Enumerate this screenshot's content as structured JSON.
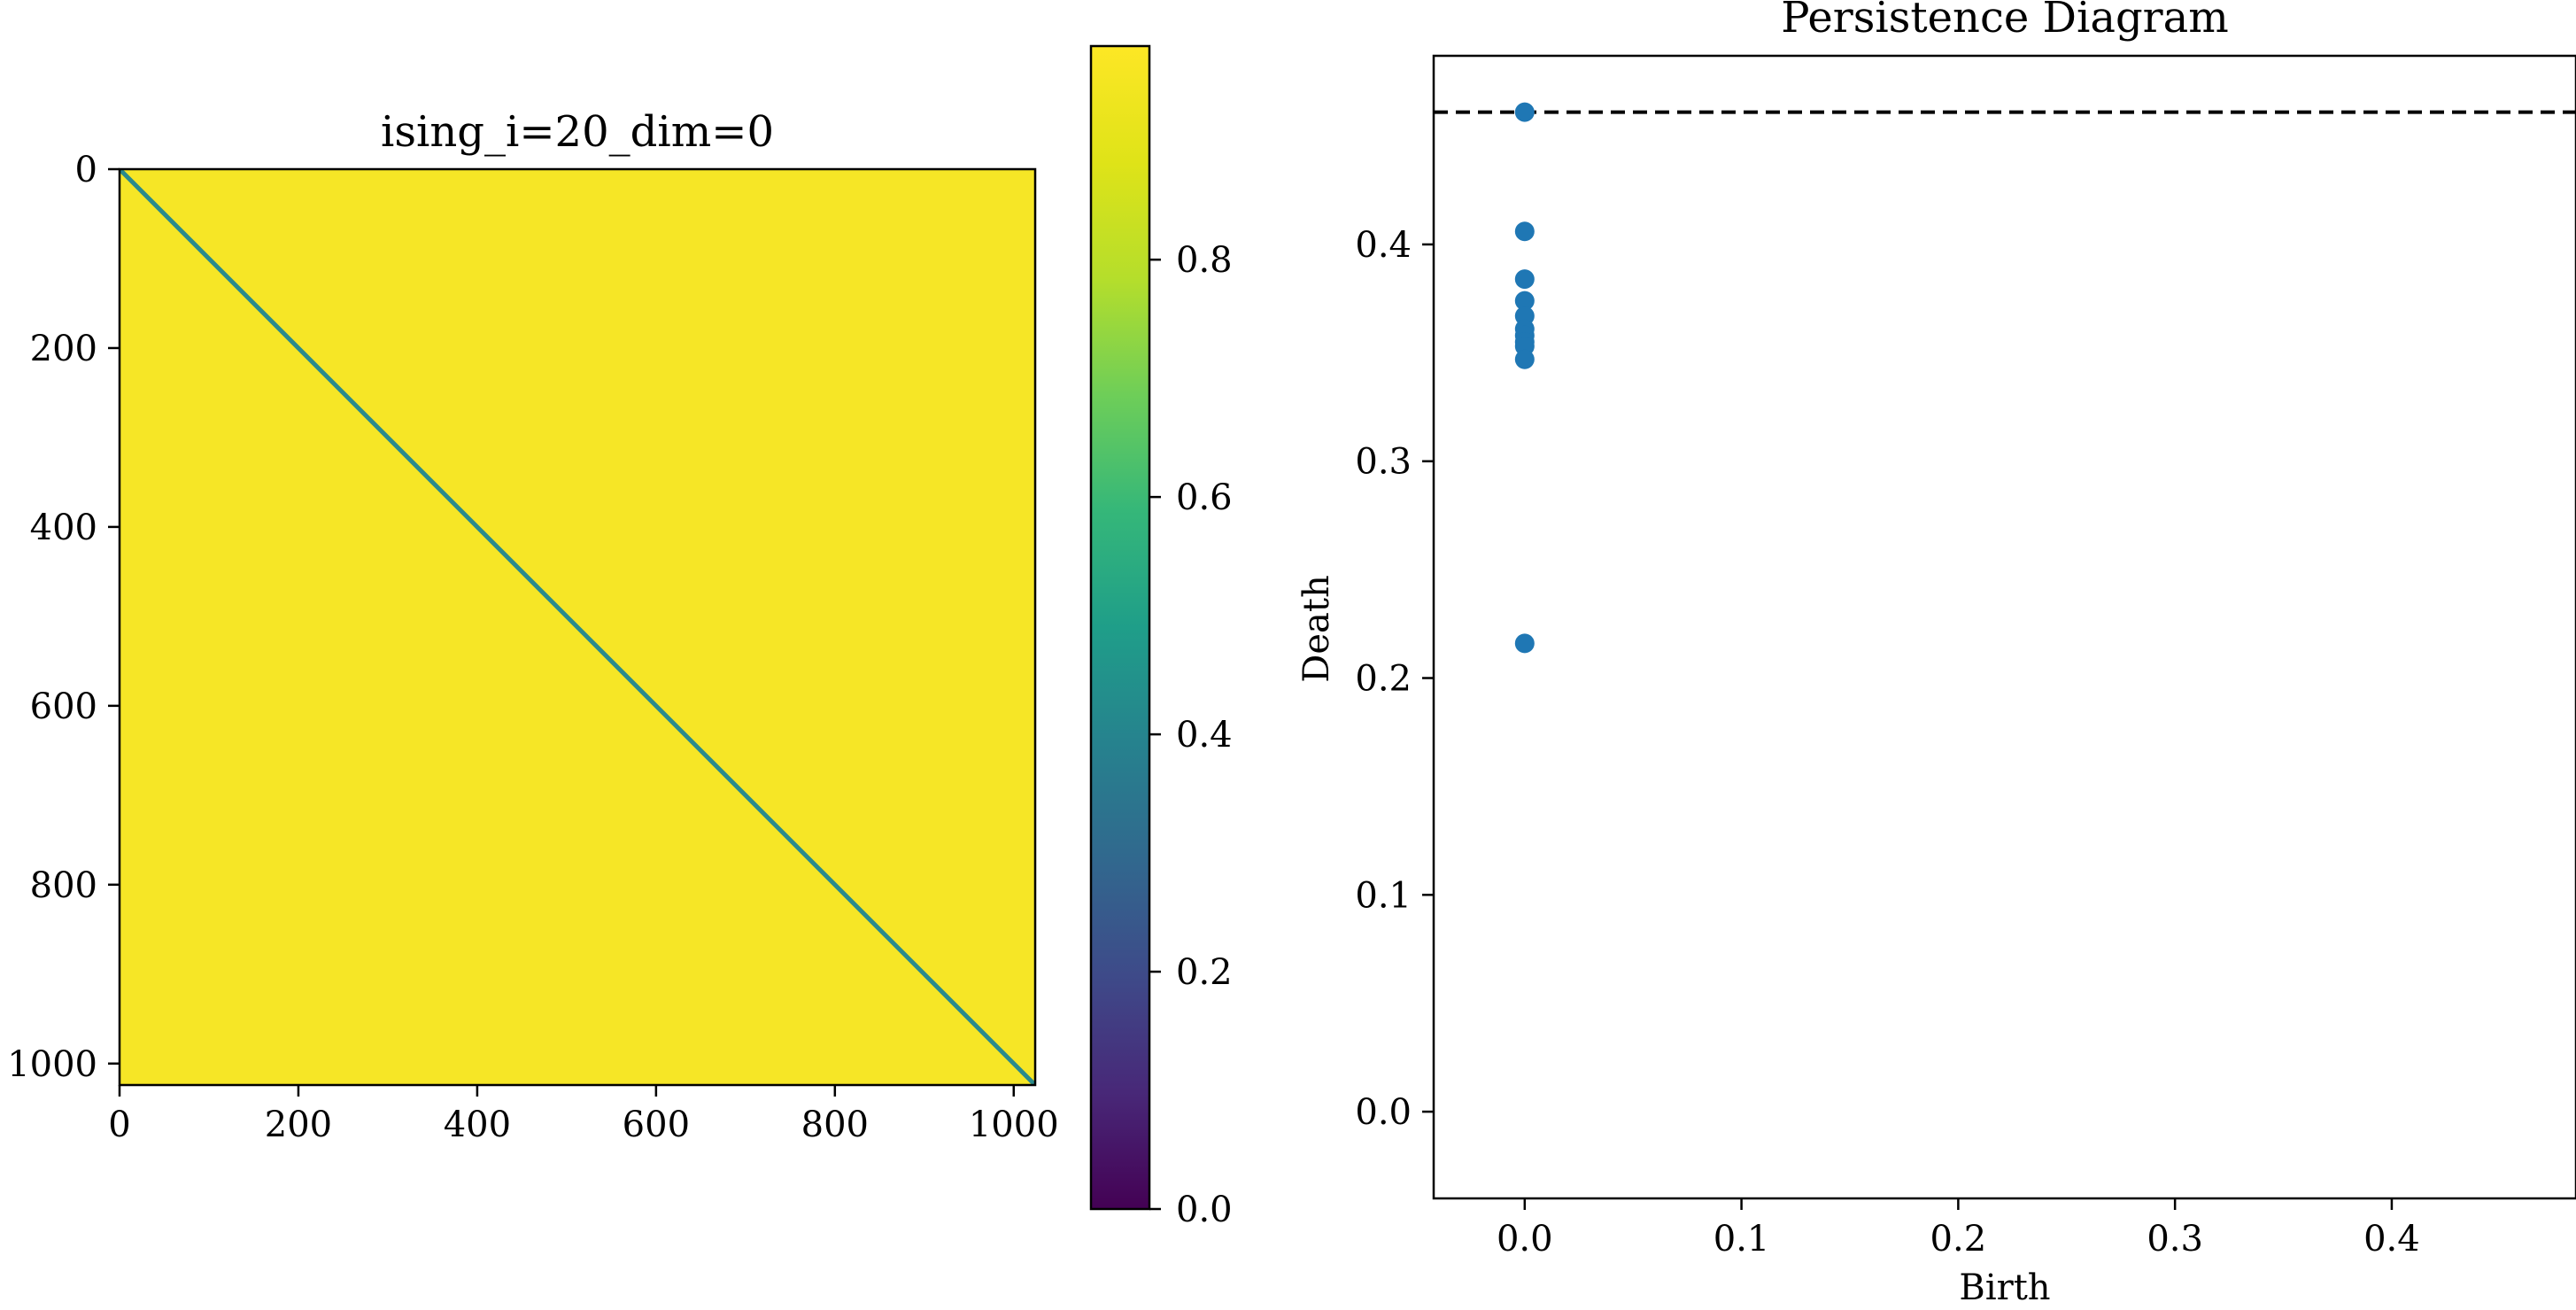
{
  "chart_data": [
    {
      "type": "heatmap",
      "title": "ising_i=20_dim=0",
      "xlabel": "",
      "ylabel": "",
      "xlim": [
        0,
        1024
      ],
      "ylim": [
        1024,
        0
      ],
      "x_ticks": [
        "0",
        "200",
        "400",
        "600",
        "800",
        "1000"
      ],
      "y_ticks": [
        "0",
        "200",
        "400",
        "600",
        "800",
        "1000"
      ],
      "matrix_size": 1024,
      "description": "",
      "off_diagonal_value": 0.98,
      "diagonal_value": 0.4,
      "colormap": "viridis",
      "colorbar": {
        "range": [
          0.0,
          0.98
        ],
        "ticks": [
          "0.0",
          "0.2",
          "0.4",
          "0.6",
          "0.8"
        ],
        "tick_values": [
          0.0,
          0.2,
          0.4,
          0.6,
          0.8
        ]
      },
      "colors": {
        "off_diagonal": "#f6e626",
        "diagonal": "#2a8a8c"
      }
    },
    {
      "type": "scatter",
      "title": "Persistence Diagram",
      "xlabel": "Birth",
      "ylabel": "Death",
      "xlim": [
        -0.042,
        0.485
      ],
      "ylim": [
        -0.04,
        0.487
      ],
      "x_ticks": [
        "0.0",
        "0.1",
        "0.2",
        "0.3",
        "0.4"
      ],
      "x_tick_values": [
        0.0,
        0.1,
        0.2,
        0.3,
        0.4
      ],
      "y_ticks": [
        "0.0",
        "0.1",
        "0.2",
        "0.3",
        "0.4"
      ],
      "y_tick_values": [
        0.0,
        0.1,
        0.2,
        0.3,
        0.4
      ],
      "series": [
        {
          "x": [
            0.0,
            0.0,
            0.0,
            0.0,
            0.0,
            0.0,
            0.0,
            0.0,
            0.0,
            0.0,
            0.0
          ],
          "y": [
            0.461,
            0.406,
            0.384,
            0.374,
            0.367,
            0.361,
            0.358,
            0.355,
            0.353,
            0.347,
            0.216
          ]
        }
      ],
      "infinity_line": 0.461,
      "colors": {
        "points": "#1f77b4",
        "infinity_line": "#000000"
      }
    }
  ]
}
